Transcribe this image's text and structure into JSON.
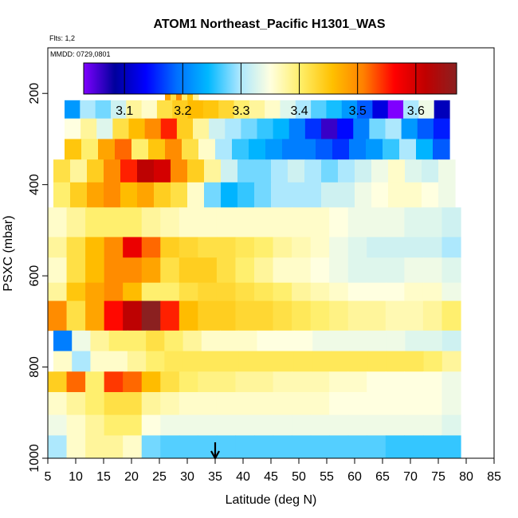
{
  "chart_data": {
    "type": "heatmap",
    "title": "ATOM1 Northeast_Pacific H1301_WAS",
    "flights_label": "Flts: 1,2",
    "mmdd_label": "MMDD: 0729,0801",
    "xlabel": "Latitude (deg N)",
    "ylabel": "PSXC (mbar)",
    "xlim": [
      5,
      85
    ],
    "ylim": [
      1000,
      100
    ],
    "x_ticks": [
      5,
      10,
      15,
      20,
      25,
      30,
      35,
      40,
      45,
      50,
      55,
      60,
      65,
      70,
      75,
      80,
      85
    ],
    "y_ticks": [
      200,
      400,
      600,
      800,
      1000
    ],
    "colorbar": {
      "range": [
        3.03,
        3.67
      ],
      "ticks": [
        3.1,
        3.2,
        3.3,
        3.4,
        3.5,
        3.6
      ],
      "colors": [
        "#7f00ff",
        "#00009c",
        "#0000ff",
        "#0070ff",
        "#00b8ff",
        "#a8e6ff",
        "#ffffe0",
        "#ffee66",
        "#ffc000",
        "#ff8000",
        "#ff0000",
        "#c00000",
        "#8b2020"
      ]
    },
    "arrow_latitude": 35,
    "rows": [
      {
        "p_top": 165,
        "p_bot": 215,
        "lat_start": 26,
        "lat_end": 32,
        "values": [
          3.48,
          3.42,
          3.5,
          3.4,
          3.45,
          3.38
        ]
      },
      {
        "p_top": 215,
        "p_bot": 255,
        "lat_start": 8,
        "lat_end": 77,
        "values": [
          3.22,
          3.3,
          3.28,
          3.32,
          3.38,
          3.36,
          3.42,
          3.44,
          3.46,
          3.45,
          3.43,
          3.4,
          3.38,
          3.36,
          3.33,
          3.3,
          3.27,
          3.25,
          3.22,
          3.18,
          3.12,
          3.02,
          3.3,
          3.34,
          3.1
        ]
      },
      {
        "p_top": 255,
        "p_bot": 300,
        "lat_start": 8,
        "lat_end": 77,
        "values": [
          3.35,
          3.38,
          3.33,
          3.42,
          3.46,
          3.5,
          3.55,
          3.44,
          3.38,
          3.32,
          3.3,
          3.28,
          3.26,
          3.24,
          3.2,
          3.16,
          3.06,
          3.14,
          3.2,
          3.28,
          3.3,
          3.22,
          3.18,
          3.15
        ]
      },
      {
        "p_top": 300,
        "p_bot": 345,
        "lat_start": 8,
        "lat_end": 77,
        "values": [
          3.45,
          3.4,
          3.48,
          3.52,
          3.4,
          3.45,
          3.5,
          3.42,
          3.36,
          3.3,
          3.26,
          3.24,
          3.22,
          3.2,
          3.2,
          3.18,
          3.16,
          3.2,
          3.22,
          3.26,
          3.3,
          3.24,
          3.18
        ]
      },
      {
        "p_top": 345,
        "p_bot": 395,
        "lat_start": 6,
        "lat_end": 78,
        "values": [
          3.42,
          3.38,
          3.44,
          3.5,
          3.55,
          3.62,
          3.6,
          3.5,
          3.44,
          3.38,
          3.32,
          3.28,
          3.28,
          3.3,
          3.32,
          3.3,
          3.28,
          3.3,
          3.32,
          3.34,
          3.36,
          3.33,
          3.32,
          3.34
        ]
      },
      {
        "p_top": 395,
        "p_bot": 450,
        "lat_start": 6,
        "lat_end": 78,
        "values": [
          3.4,
          3.44,
          3.48,
          3.5,
          3.46,
          3.48,
          3.44,
          3.42,
          3.36,
          3.28,
          3.24,
          3.26,
          3.28,
          3.3,
          3.3,
          3.3,
          3.32,
          3.32,
          3.34,
          3.35,
          3.36,
          3.36,
          3.35,
          3.34
        ]
      },
      {
        "p_top": 450,
        "p_bot": 515,
        "lat_start": 5,
        "lat_end": 79,
        "values": [
          3.36,
          3.38,
          3.4,
          3.4,
          3.4,
          3.38,
          3.37,
          3.36,
          3.36,
          3.36,
          3.36,
          3.36,
          3.36,
          3.36,
          3.36,
          3.35,
          3.34,
          3.34,
          3.34,
          3.33,
          3.33,
          3.32
        ]
      },
      {
        "p_top": 515,
        "p_bot": 560,
        "lat_start": 5,
        "lat_end": 79,
        "values": [
          3.38,
          3.42,
          3.46,
          3.5,
          3.58,
          3.52,
          3.44,
          3.43,
          3.42,
          3.42,
          3.41,
          3.4,
          3.38,
          3.37,
          3.36,
          3.34,
          3.33,
          3.32,
          3.32,
          3.32,
          3.32,
          3.3
        ]
      },
      {
        "p_top": 560,
        "p_bot": 615,
        "lat_start": 5,
        "lat_end": 79,
        "values": [
          3.36,
          3.42,
          3.46,
          3.5,
          3.5,
          3.48,
          3.42,
          3.44,
          3.44,
          3.42,
          3.4,
          3.38,
          3.36,
          3.36,
          3.35,
          3.34,
          3.33,
          3.33,
          3.33,
          3.34,
          3.34,
          3.33
        ]
      },
      {
        "p_top": 615,
        "p_bot": 655,
        "lat_start": 5,
        "lat_end": 79,
        "values": [
          3.38,
          3.45,
          3.48,
          3.5,
          3.46,
          3.4,
          3.4,
          3.42,
          3.43,
          3.43,
          3.42,
          3.41,
          3.4,
          3.38,
          3.37,
          3.36,
          3.35,
          3.35,
          3.35,
          3.36,
          3.36,
          3.34
        ]
      },
      {
        "p_top": 655,
        "p_bot": 720,
        "lat_start": 5,
        "lat_end": 79,
        "values": [
          3.5,
          3.42,
          3.48,
          3.56,
          3.62,
          3.68,
          3.55,
          3.46,
          3.44,
          3.44,
          3.43,
          3.43,
          3.42,
          3.41,
          3.4,
          3.39,
          3.38,
          3.38,
          3.37,
          3.37,
          3.38,
          3.4
        ]
      },
      {
        "p_top": 720,
        "p_bot": 765,
        "lat_start": 6,
        "lat_end": 79,
        "values": [
          3.2,
          3.34,
          3.38,
          3.4,
          3.4,
          3.42,
          3.4,
          3.38,
          3.36,
          3.36,
          3.36,
          3.35,
          3.35,
          3.35,
          3.34,
          3.34,
          3.34,
          3.34,
          3.34,
          3.33,
          3.33,
          3.32
        ]
      },
      {
        "p_top": 765,
        "p_bot": 810,
        "lat_start": 6,
        "lat_end": 79,
        "values": [
          3.36,
          3.3,
          3.36,
          3.36,
          3.38,
          3.4,
          3.41,
          3.41,
          3.41,
          3.41,
          3.41,
          3.41,
          3.41,
          3.41,
          3.41,
          3.41,
          3.41,
          3.41,
          3.41,
          3.41,
          3.4,
          3.38
        ]
      },
      {
        "p_top": 810,
        "p_bot": 855,
        "lat_start": 5,
        "lat_end": 79,
        "values": [
          3.44,
          3.52,
          3.4,
          3.54,
          3.52,
          3.46,
          3.42,
          3.4,
          3.39,
          3.39,
          3.38,
          3.38,
          3.37,
          3.37,
          3.37,
          3.36,
          3.36,
          3.35,
          3.35,
          3.35,
          3.35,
          3.34
        ]
      },
      {
        "p_top": 855,
        "p_bot": 905,
        "lat_start": 5,
        "lat_end": 79,
        "values": [
          3.36,
          3.38,
          3.4,
          3.42,
          3.42,
          3.38,
          3.37,
          3.36,
          3.36,
          3.36,
          3.36,
          3.36,
          3.36,
          3.36,
          3.36,
          3.35,
          3.35,
          3.35,
          3.35,
          3.35,
          3.35,
          3.34
        ]
      },
      {
        "p_top": 905,
        "p_bot": 950,
        "lat_start": 5,
        "lat_end": 79,
        "values": [
          3.34,
          3.36,
          3.38,
          3.4,
          3.4,
          3.35,
          3.34,
          3.34,
          3.34,
          3.34,
          3.34,
          3.34,
          3.34,
          3.34,
          3.34,
          3.34,
          3.34,
          3.34,
          3.34,
          3.34,
          3.34,
          3.33
        ]
      },
      {
        "p_top": 950,
        "p_bot": 1000,
        "lat_start": 5,
        "lat_end": 79,
        "values": [
          3.3,
          3.36,
          3.38,
          3.38,
          3.36,
          3.28,
          3.27,
          3.27,
          3.27,
          3.27,
          3.27,
          3.27,
          3.27,
          3.27,
          3.27,
          3.27,
          3.27,
          3.27,
          3.26,
          3.26,
          3.26,
          3.26
        ]
      }
    ]
  }
}
